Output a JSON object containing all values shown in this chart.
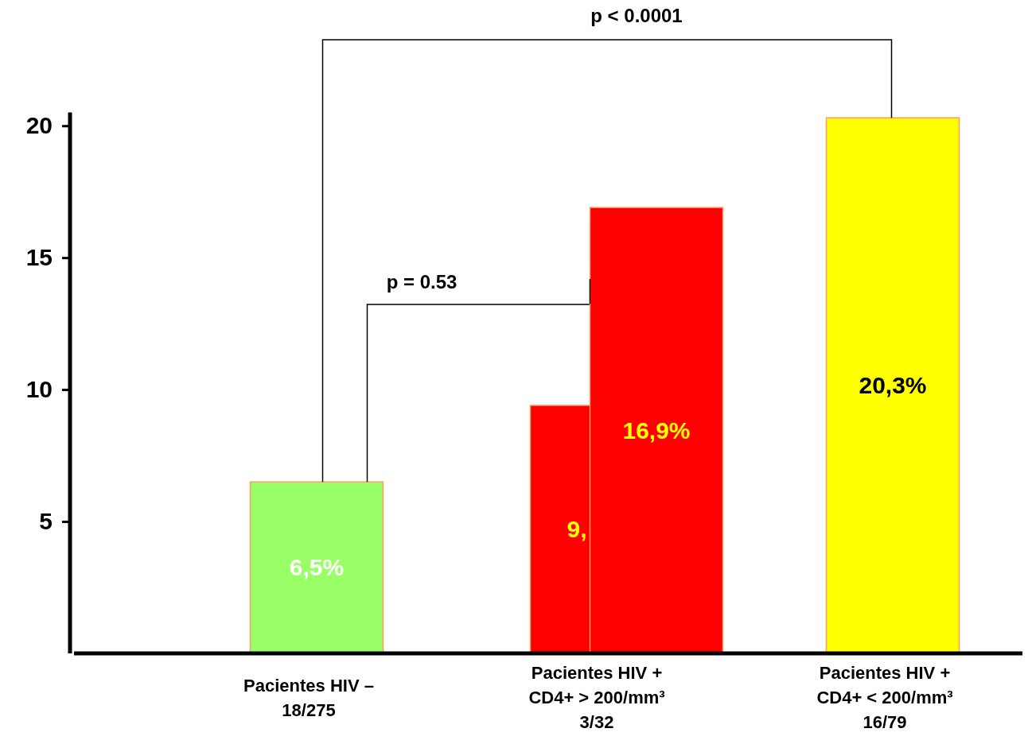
{
  "chart_data": {
    "type": "bar",
    "categories": [
      "Pacientes HIV –\n18/275",
      "Pacientes HIV +\nCD4+ > 200/mm³\n3/32",
      "Pacientes HIV +\nCD4+ < 200/mm³\n16/79"
    ],
    "series": [
      {
        "color": "#ff0000",
        "values": [
          null,
          9.4,
          null
        ],
        "value_labels": [
          null,
          "9,",
          null
        ]
      },
      {
        "colors": [
          "#99ff66",
          "#ff0000",
          "#ffff00"
        ],
        "values": [
          6.5,
          16.9,
          20.3
        ],
        "value_labels": [
          "6,5%",
          "16,9%",
          "20,3%"
        ]
      }
    ],
    "ylim": [
      0,
      20.5
    ],
    "yticks": [
      5,
      10,
      15,
      20
    ],
    "grid": false,
    "annotations": [
      "p < 0.0001",
      "p = 0.53"
    ]
  }
}
